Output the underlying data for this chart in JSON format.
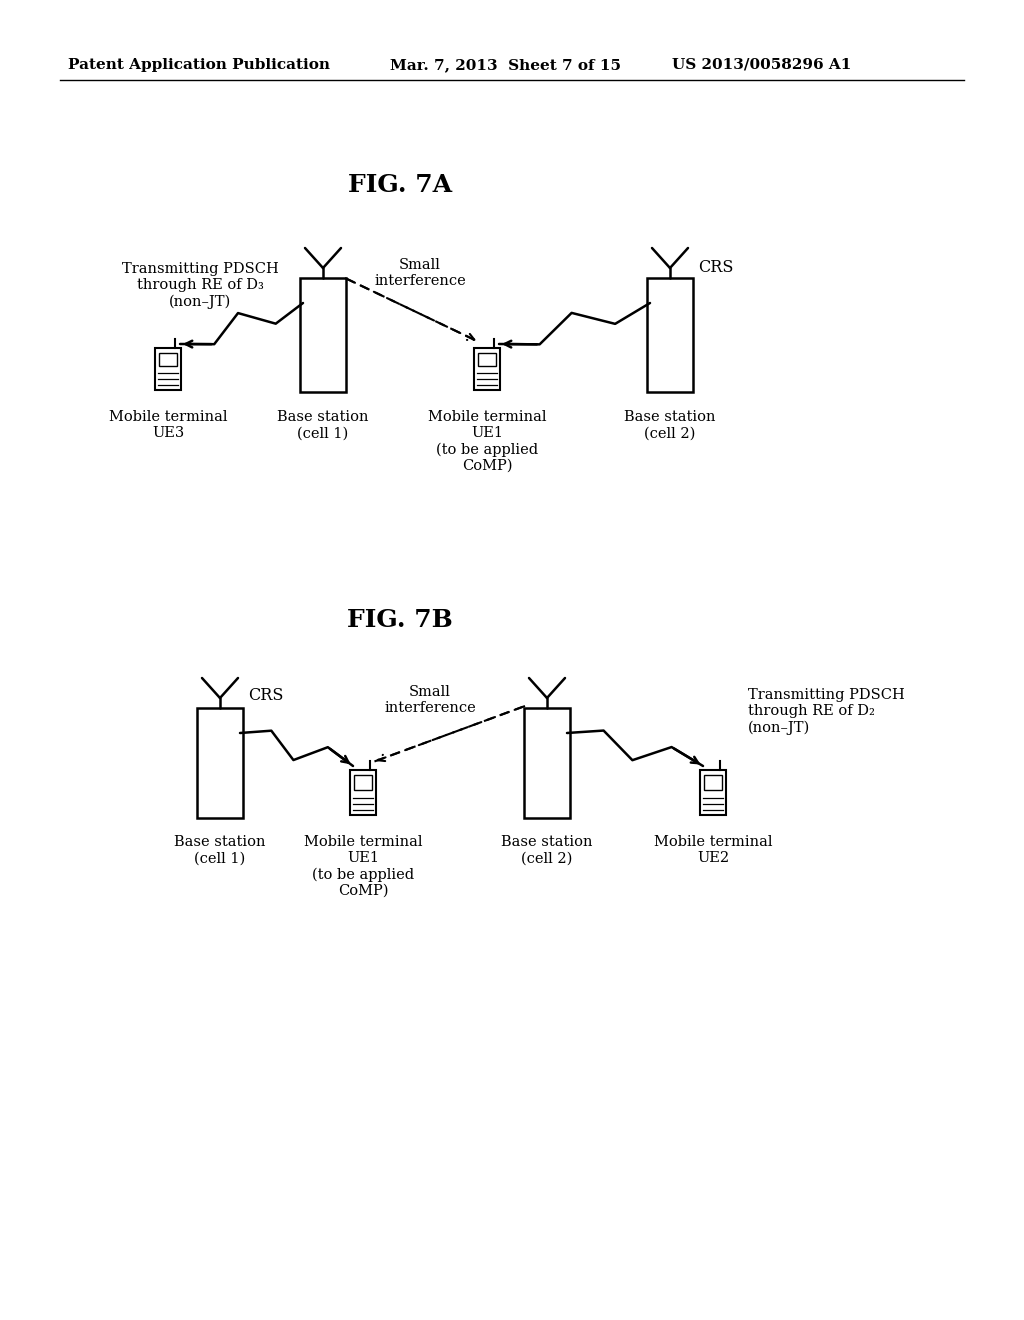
{
  "bg_color": "#ffffff",
  "header_left": "Patent Application Publication",
  "header_mid": "Mar. 7, 2013  Sheet 7 of 15",
  "header_right": "US 2013/0058296 A1",
  "fig7a_title": "FIG. 7A",
  "fig7b_title": "FIG. 7B",
  "fig7a_label_annotation": "Transmitting PDSCH\nthrough RE of D₃\n(non–JT)",
  "fig7a_small_interference": "Small\ninterference",
  "fig7a_crs": "CRS",
  "fig7a_labels": [
    "Mobile terminal\nUE3",
    "Base station\n(cell 1)",
    "Mobile terminal\nUE1\n(to be applied\nCoMP)",
    "Base station\n(cell 2)"
  ],
  "fig7b_label_annotation": "Transmitting PDSCH\nthrough RE of D₂\n(non–JT)",
  "fig7b_small_interference": "Small\ninterference",
  "fig7b_crs": "CRS",
  "fig7b_labels": [
    "Base station\n(cell 1)",
    "Mobile terminal\nUE1\n(to be applied\nCoMP)",
    "Base station\n(cell 2)",
    "Mobile terminal\nUE2"
  ],
  "header_fontsize": 11,
  "title_fontsize": 18,
  "label_fontsize": 10.5,
  "annot_fontsize": 10.5
}
